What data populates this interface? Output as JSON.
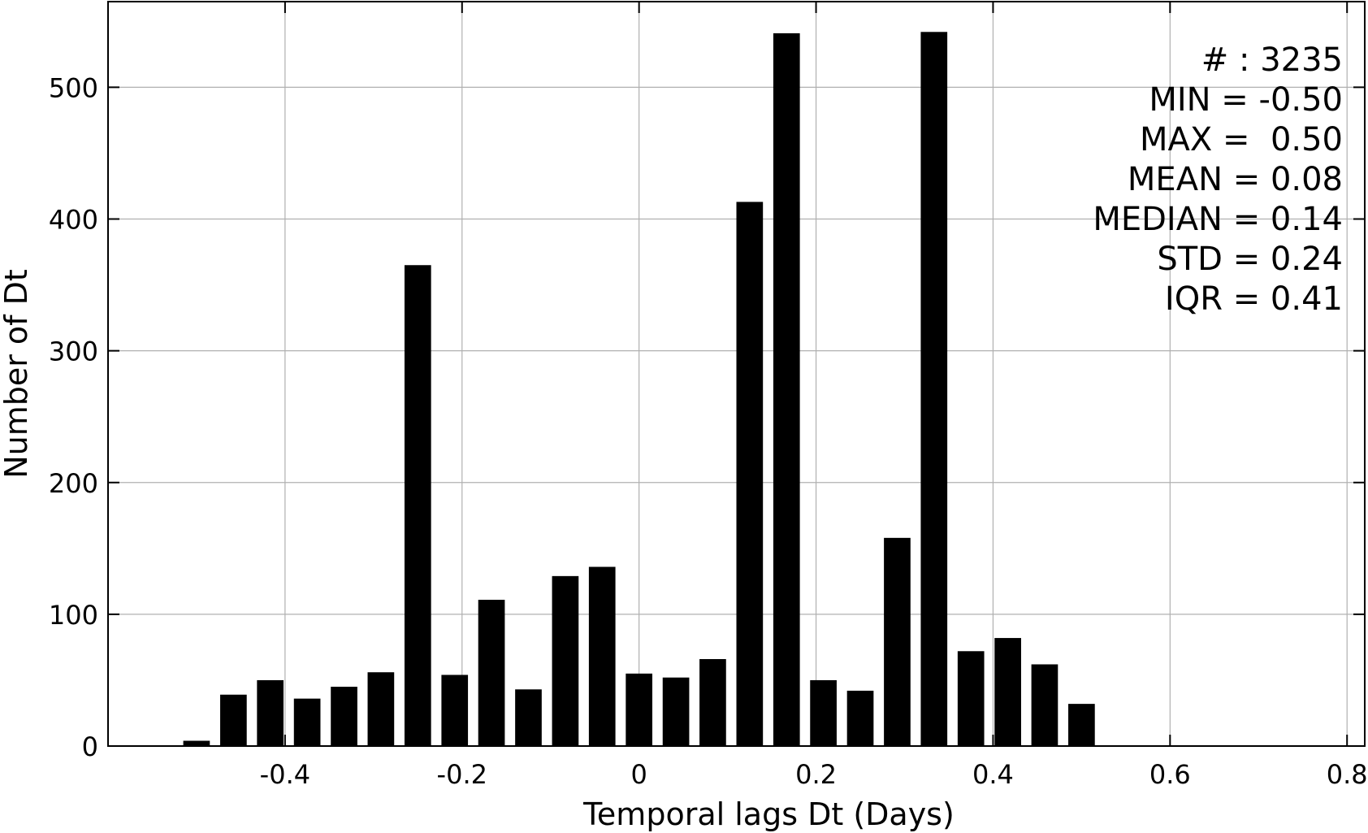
{
  "chart_data": {
    "type": "bar",
    "title": "",
    "xlabel": "Temporal lags Dt (Days)",
    "ylabel": "Number of Dt",
    "xlim": [
      -0.6,
      0.82
    ],
    "ylim": [
      0,
      565
    ],
    "grid": true,
    "bar_color": "#000000",
    "bar_width": 0.03,
    "x_ticks": [
      -0.4,
      -0.2,
      0,
      0.2,
      0.4,
      0.6,
      0.8
    ],
    "x_tick_labels": [
      "-0.4",
      "-0.2",
      "0",
      "0.2",
      "0.4",
      "0.6",
      "0.8"
    ],
    "y_ticks": [
      0,
      100,
      200,
      300,
      400,
      500
    ],
    "y_tick_labels": [
      "0",
      "100",
      "200",
      "300",
      "400",
      "500"
    ],
    "x": [
      -0.5,
      -0.4583,
      -0.4167,
      -0.375,
      -0.3333,
      -0.2917,
      -0.25,
      -0.2083,
      -0.1667,
      -0.125,
      -0.0833,
      -0.0417,
      0.0,
      0.0417,
      0.0833,
      0.125,
      0.1667,
      0.2083,
      0.25,
      0.2917,
      0.3333,
      0.375,
      0.4167,
      0.4583,
      0.5
    ],
    "values": [
      4,
      39,
      50,
      36,
      45,
      56,
      365,
      54,
      111,
      43,
      129,
      136,
      55,
      52,
      66,
      413,
      541,
      50,
      42,
      158,
      542,
      72,
      82,
      62,
      32
    ],
    "annotations": [
      "# : 3235",
      "MIN = -0.50",
      "MAX =  0.50",
      "MEAN = 0.08",
      "MEDIAN = 0.14",
      "STD = 0.24",
      "IQR = 0.41"
    ]
  }
}
